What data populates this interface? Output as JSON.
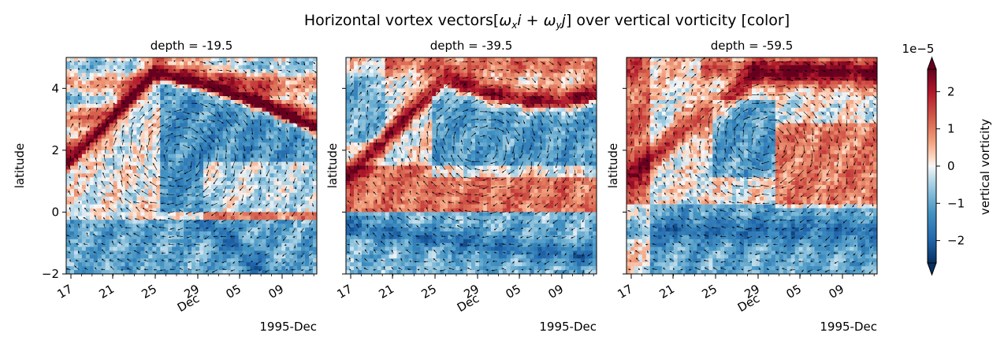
{
  "figure": {
    "title": "Horizontal vortex vectors[$\\omega_x i + \\omega_y j$] over vertical vorticity [color]",
    "title_parts": {
      "pre": "Horizontal vortex vectors[",
      "wx": "ω",
      "wx_sub": "x",
      "i": "i",
      "plus": " + ",
      "wy": "ω",
      "wy_sub": "y",
      "j": "j",
      "post": "] over vertical vorticity [color]"
    }
  },
  "colors": {
    "positive_max": "#67001f",
    "positive": "#d6604d",
    "neutral": "#f7f7f7",
    "negative": "#4393c3",
    "negative_max": "#053061",
    "arrows": "#000000"
  },
  "chart_data": [
    {
      "type": "heatmap",
      "subtitle": "depth = -19.5",
      "ylabel": "latitude",
      "xlabel": "1995-Dec",
      "ylim": [
        -2,
        5
      ],
      "y_ticks": [
        -2,
        0,
        2,
        4
      ],
      "x_ticks": [
        "17",
        "21",
        "25",
        "29\nDec",
        "05",
        "09"
      ],
      "overlay": "quiver"
    },
    {
      "type": "heatmap",
      "subtitle": "depth = -39.5",
      "ylabel": "latitude",
      "xlabel": "1995-Dec",
      "ylim": [
        -2,
        5
      ],
      "y_ticks": [
        -2,
        0,
        2,
        4
      ],
      "x_ticks": [
        "17",
        "21",
        "25",
        "29\nDec",
        "05",
        "09"
      ],
      "overlay": "quiver"
    },
    {
      "type": "heatmap",
      "subtitle": "depth = -59.5",
      "ylabel": "latitude",
      "xlabel": "1995-Dec",
      "ylim": [
        -2,
        5
      ],
      "y_ticks": [
        -2,
        0,
        2,
        4
      ],
      "x_ticks": [
        "17",
        "21",
        "25",
        "29\nDec",
        "05",
        "09"
      ],
      "overlay": "quiver"
    }
  ],
  "colorbar": {
    "label": "vertical vorticity",
    "multiplier": "1e−5",
    "ticks": [
      "−2",
      "−1",
      "0",
      "1",
      "2"
    ],
    "range": [
      -2.6,
      2.6
    ]
  },
  "y_tick_labels": [
    "−2",
    "0",
    "2",
    "4"
  ],
  "x_tick_labels": [
    "17",
    "21",
    "25",
    "29",
    "05",
    "09"
  ],
  "x_month_label": "Dec"
}
